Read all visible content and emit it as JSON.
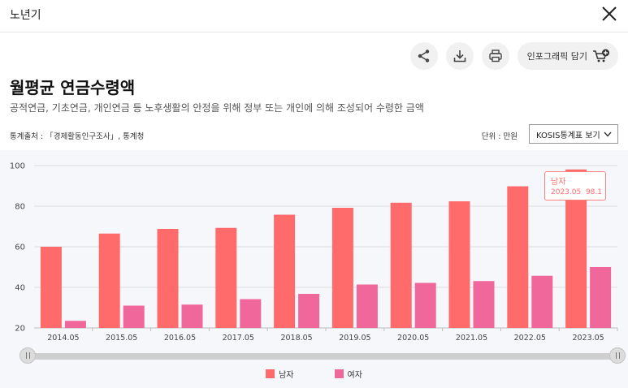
{
  "topbar": {
    "title": "노년기"
  },
  "actions": {
    "infographic_label": "인포그래픽 담기"
  },
  "header": {
    "title": "월평균 연금수령액",
    "subtitle": "공적연금, 기초연금, 개인연금 등 노후생활의 안정을 위해 정부 또는 개인에 의해 조성되어 수령한 금액"
  },
  "meta": {
    "source": "통계출처 : 「경제활동인구조사」, 통계청",
    "unit": "단위 : 만원",
    "kosis_button": "KOSIS통계표 보기"
  },
  "tooltip": {
    "series": "남자",
    "x": "2023.05",
    "value": "98.1"
  },
  "colors": {
    "male": "#ff6b6b",
    "female": "#f0679c"
  },
  "chart_data": {
    "type": "bar",
    "categories": [
      "2014.05",
      "2015.05",
      "2016.05",
      "2017.05",
      "2018.05",
      "2019.05",
      "2020.05",
      "2021.05",
      "2022.05",
      "2023.05"
    ],
    "series": [
      {
        "name": "남자",
        "values": [
          60.0,
          66.5,
          68.8,
          69.3,
          75.8,
          79.2,
          81.7,
          82.4,
          89.8,
          98.1
        ]
      },
      {
        "name": "여자",
        "values": [
          23.5,
          31.0,
          31.5,
          34.2,
          36.8,
          41.4,
          42.2,
          43.1,
          45.7,
          50.0
        ]
      }
    ],
    "ylim": [
      20,
      100
    ],
    "yticks": [
      20,
      40,
      60,
      80,
      100
    ],
    "grid": true,
    "legend": "bottom"
  }
}
